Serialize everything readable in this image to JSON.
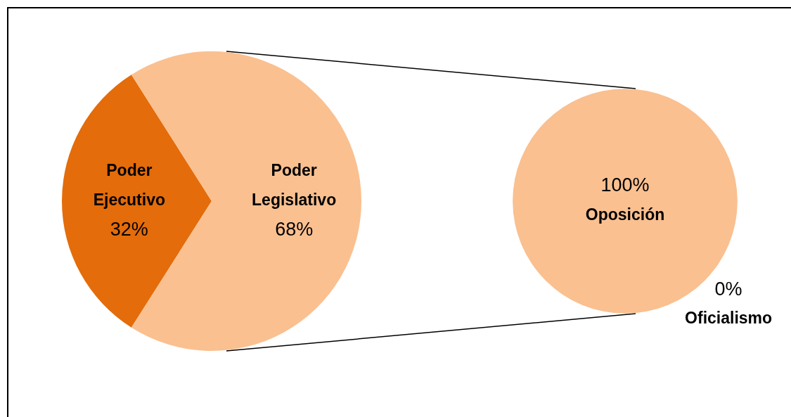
{
  "chart_data": [
    {
      "type": "pie",
      "categories": [
        "Poder Ejecutivo",
        "Poder Legislativo"
      ],
      "values": [
        32,
        68
      ],
      "colors": [
        "#e46c0a",
        "#fac090"
      ],
      "value_labels": [
        "32%",
        "68%"
      ],
      "legend": false
    },
    {
      "type": "pie",
      "categories": [
        "Oposición",
        "Oficialismo"
      ],
      "values": [
        100,
        0
      ],
      "colors": [
        "#fac090",
        "#e46c0a"
      ],
      "value_labels": [
        "100%",
        "0%"
      ],
      "legend": false
    }
  ]
}
